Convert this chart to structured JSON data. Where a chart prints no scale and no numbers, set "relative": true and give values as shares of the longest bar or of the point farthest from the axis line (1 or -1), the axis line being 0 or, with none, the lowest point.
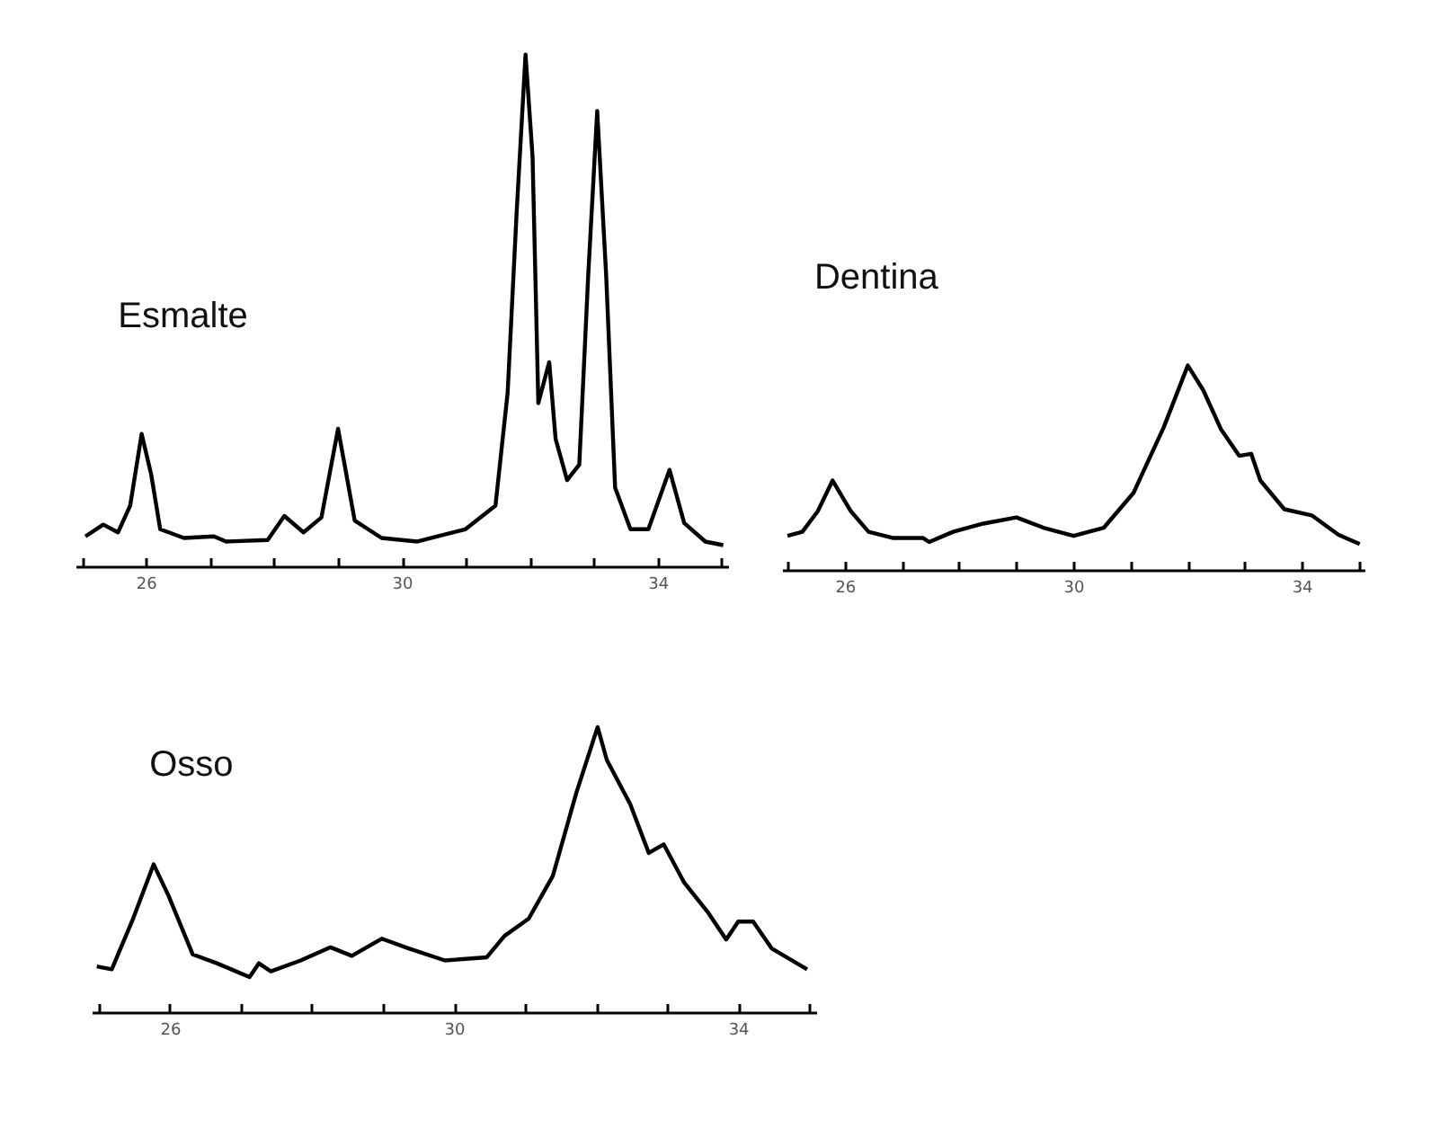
{
  "chart_data": [
    {
      "type": "line",
      "title": "Esmalte",
      "relative": true,
      "xlim": [
        24.9,
        35.1
      ],
      "xticks": [
        {
          "value": 25,
          "label": null
        },
        26,
        {
          "value": 27,
          "label": null
        },
        {
          "value": 28,
          "label": null
        },
        {
          "value": 29,
          "label": null
        },
        30,
        {
          "value": 31,
          "label": null
        },
        {
          "value": 32,
          "label": null
        },
        {
          "value": 33,
          "label": null
        },
        34,
        {
          "value": 35,
          "label": null
        }
      ],
      "series": [
        {
          "color": "#000000",
          "x": [
            25.04,
            25.32,
            25.55,
            25.74,
            25.92,
            26.07,
            26.21,
            26.58,
            27.05,
            27.24,
            27.89,
            28.15,
            28.45,
            28.73,
            28.99,
            29.25,
            29.67,
            30.23,
            30.98,
            31.45,
            31.64,
            31.78,
            31.92,
            32.03,
            32.12,
            32.29,
            32.39,
            32.57,
            32.76,
            32.9,
            33.04,
            33.18,
            33.32,
            33.56,
            33.84,
            34.17,
            34.4,
            34.73,
            35.01
          ],
          "values": [
            0.06,
            0.083,
            0.068,
            0.12,
            0.26,
            0.18,
            0.074,
            0.057,
            0.06,
            0.05,
            0.053,
            0.1,
            0.068,
            0.097,
            0.27,
            0.091,
            0.057,
            0.05,
            0.074,
            0.12,
            0.34,
            0.69,
            1.0,
            0.8,
            0.32,
            0.4,
            0.25,
            0.17,
            0.2,
            0.57,
            0.89,
            0.57,
            0.155,
            0.074,
            0.074,
            0.19,
            0.086,
            0.05,
            0.043
          ]
        }
      ]
    },
    {
      "type": "line",
      "title": "Dentina",
      "relative": true,
      "xlim": [
        24.9,
        35.1
      ],
      "xticks": [
        {
          "value": 25,
          "label": null
        },
        26,
        {
          "value": 27,
          "label": null
        },
        {
          "value": 28,
          "label": null
        },
        {
          "value": 29,
          "label": null
        },
        30,
        {
          "value": 31,
          "label": null
        },
        {
          "value": 32,
          "label": null
        },
        {
          "value": 33,
          "label": null
        },
        34,
        {
          "value": 35,
          "label": null
        }
      ],
      "series": [
        {
          "color": "#000000",
          "x": [
            24.98,
            25.24,
            25.51,
            25.77,
            26.09,
            26.4,
            26.82,
            27.35,
            27.46,
            27.88,
            28.41,
            28.99,
            29.46,
            29.99,
            30.52,
            31.04,
            31.57,
            31.99,
            32.26,
            32.57,
            32.89,
            33.1,
            33.26,
            33.68,
            34.16,
            34.63,
            35.0
          ],
          "values": [
            0.17,
            0.19,
            0.29,
            0.44,
            0.29,
            0.19,
            0.16,
            0.16,
            0.14,
            0.19,
            0.23,
            0.26,
            0.21,
            0.17,
            0.21,
            0.38,
            0.7,
            1.0,
            0.88,
            0.69,
            0.56,
            0.57,
            0.44,
            0.3,
            0.27,
            0.175,
            0.13
          ]
        }
      ]
    },
    {
      "type": "line",
      "title": "Osso",
      "relative": true,
      "xlim": [
        24.9,
        35.1
      ],
      "xticks": [
        {
          "value": 25,
          "label": null
        },
        26,
        {
          "value": 27,
          "label": null
        },
        {
          "value": 28,
          "label": null
        },
        {
          "value": 29,
          "label": null
        },
        30,
        {
          "value": 31,
          "label": null
        },
        {
          "value": 32,
          "label": null
        },
        {
          "value": 33,
          "label": null
        },
        34,
        {
          "value": 35,
          "label": null
        }
      ],
      "series": [
        {
          "color": "#000000",
          "x": [
            24.96,
            25.17,
            25.47,
            25.76,
            25.97,
            26.31,
            26.65,
            27.11,
            27.24,
            27.41,
            27.83,
            28.25,
            28.55,
            28.97,
            29.35,
            29.86,
            30.45,
            30.7,
            31.04,
            31.38,
            31.71,
            32.01,
            32.14,
            32.47,
            32.73,
            32.94,
            33.23,
            33.57,
            33.82,
            33.99,
            34.2,
            34.46,
            34.96
          ],
          "values": [
            0.163,
            0.153,
            0.33,
            0.52,
            0.41,
            0.205,
            0.174,
            0.126,
            0.174,
            0.146,
            0.184,
            0.23,
            0.2,
            0.26,
            0.226,
            0.184,
            0.195,
            0.27,
            0.33,
            0.48,
            0.77,
            1.0,
            0.885,
            0.73,
            0.56,
            0.59,
            0.456,
            0.35,
            0.257,
            0.32,
            0.32,
            0.226,
            0.153
          ]
        }
      ]
    }
  ]
}
